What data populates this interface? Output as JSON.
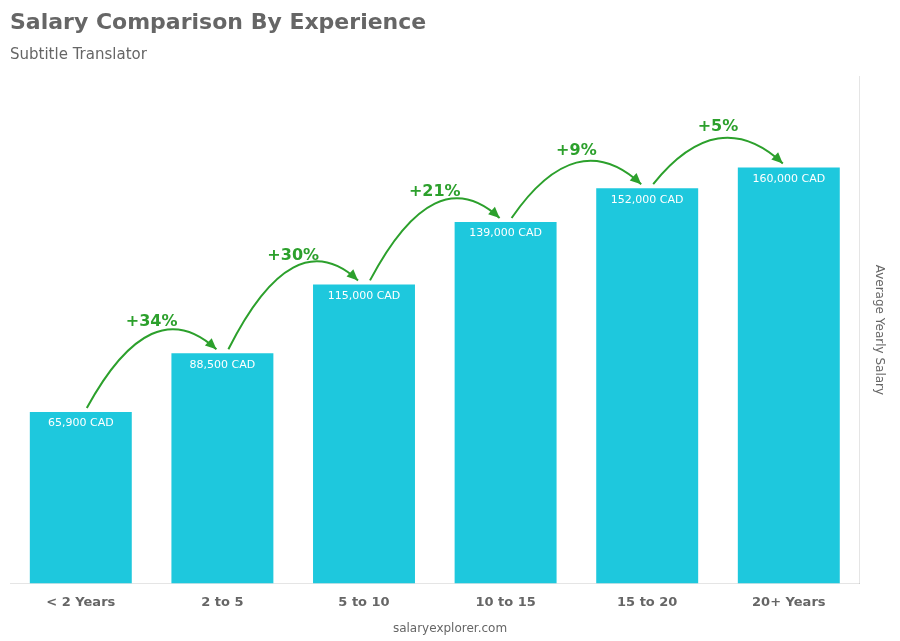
{
  "chart_data": {
    "type": "bar",
    "title": "Salary Comparison By Experience",
    "subtitle": "Subtitle Translator",
    "caption": "salaryexplorer.com",
    "categories": [
      "< 2 Years",
      "2 to 5",
      "5 to 10",
      "10 to 15",
      "15 to 20",
      "20+ Years"
    ],
    "values": [
      65900,
      88500,
      115000,
      139000,
      152000,
      160000
    ],
    "value_labels": [
      "65,900 CAD",
      "88,500 CAD",
      "115,000 CAD",
      "139,000 CAD",
      "152,000 CAD",
      "160,000 CAD"
    ],
    "data_labels": true,
    "color": "#1ec8dd",
    "ylabel": "Average Yearly Salary",
    "ylim": [
      0,
      195000
    ],
    "grid": false,
    "tick_labels": "x",
    "annotations": [
      {
        "text": "+34%",
        "from": "< 2 Years",
        "to": "2 to 5"
      },
      {
        "text": "+30%",
        "from": "2 to 5",
        "to": "5 to 10"
      },
      {
        "text": "+21%",
        "from": "5 to 10",
        "to": "10 to 15"
      },
      {
        "text": "+9%",
        "from": "10 to 15",
        "to": "15 to 20"
      },
      {
        "text": "+5%",
        "from": "15 to 20",
        "to": "20+ Years"
      }
    ]
  }
}
